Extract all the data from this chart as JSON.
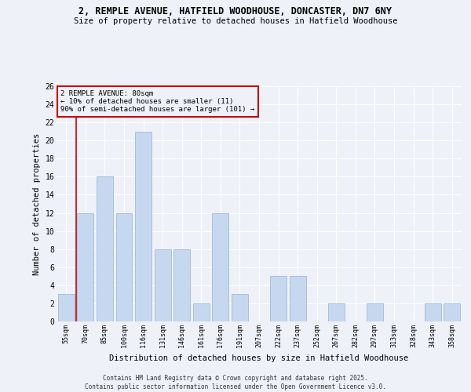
{
  "title1": "2, REMPLE AVENUE, HATFIELD WOODHOUSE, DONCASTER, DN7 6NY",
  "title2": "Size of property relative to detached houses in Hatfield Woodhouse",
  "xlabel": "Distribution of detached houses by size in Hatfield Woodhouse",
  "ylabel": "Number of detached properties",
  "categories": [
    "55sqm",
    "70sqm",
    "85sqm",
    "100sqm",
    "116sqm",
    "131sqm",
    "146sqm",
    "161sqm",
    "176sqm",
    "191sqm",
    "207sqm",
    "222sqm",
    "237sqm",
    "252sqm",
    "267sqm",
    "282sqm",
    "297sqm",
    "313sqm",
    "328sqm",
    "343sqm",
    "358sqm"
  ],
  "values": [
    3,
    12,
    16,
    12,
    21,
    8,
    8,
    2,
    12,
    3,
    0,
    5,
    5,
    0,
    2,
    0,
    2,
    0,
    0,
    2,
    2
  ],
  "bar_color": "#c5d8f0",
  "bar_edge_color": "#a0b8d8",
  "ylim": [
    0,
    26
  ],
  "yticks": [
    0,
    2,
    4,
    6,
    8,
    10,
    12,
    14,
    16,
    18,
    20,
    22,
    24,
    26
  ],
  "vline_color": "#cc0000",
  "annotation_title": "2 REMPLE AVENUE: 80sqm",
  "annotation_line1": "← 10% of detached houses are smaller (11)",
  "annotation_line2": "90% of semi-detached houses are larger (101) →",
  "annotation_box_color": "#cc0000",
  "footer1": "Contains HM Land Registry data © Crown copyright and database right 2025.",
  "footer2": "Contains public sector information licensed under the Open Government Licence v3.0.",
  "bg_color": "#eef2f8"
}
